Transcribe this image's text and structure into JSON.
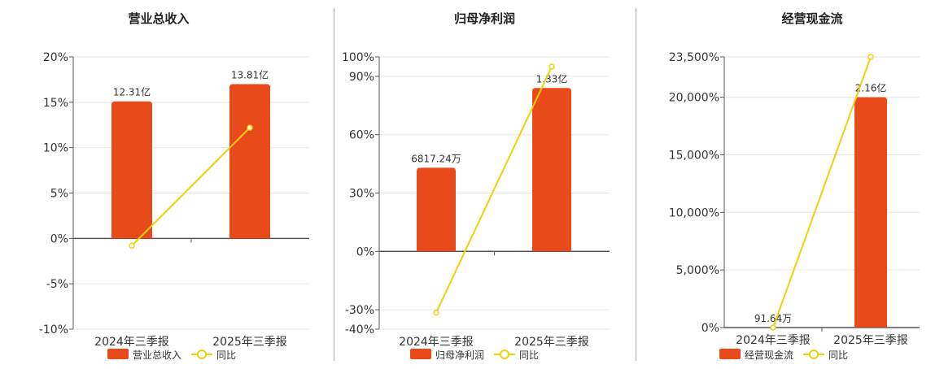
{
  "chart_data": [
    {
      "type": "bar",
      "title": "营业总收入",
      "categories": [
        "2024年三季报",
        "2025年三季报"
      ],
      "series": [
        {
          "name": "营业总收入",
          "type": "bar",
          "value_labels": [
            "12.31亿",
            "13.81亿"
          ],
          "heights_pct": [
            15.1,
            17.0
          ]
        },
        {
          "name": "同比",
          "type": "line",
          "values": [
            -0.8,
            12.2
          ]
        }
      ],
      "yticks": [
        "20%",
        "15%",
        "10%",
        "5%",
        "0%",
        "-5%",
        "-10%"
      ],
      "ylim": [
        -10,
        20
      ]
    },
    {
      "type": "bar",
      "title": "归母净利润",
      "categories": [
        "2024年三季报",
        "2025年三季报"
      ],
      "series": [
        {
          "name": "归母净利润",
          "type": "bar",
          "value_labels": [
            "6817.24万",
            "1.33亿"
          ],
          "heights_pct": [
            43,
            84
          ]
        },
        {
          "name": "同比",
          "type": "line",
          "values": [
            -31.5,
            95
          ]
        }
      ],
      "yticks": [
        "100%",
        "90%",
        "60%",
        "30%",
        "0%",
        "-30%",
        "-40%"
      ],
      "ylim": [
        -40,
        100
      ]
    },
    {
      "type": "bar",
      "title": "经营现金流",
      "categories": [
        "2024年三季报",
        "2025年三季报"
      ],
      "series": [
        {
          "name": "经营现金流",
          "type": "bar",
          "value_labels": [
            "91.64万",
            "2.16亿"
          ],
          "heights_pct": [
            0,
            20000
          ]
        },
        {
          "name": "同比",
          "type": "line",
          "values": [
            0,
            23500
          ]
        }
      ],
      "yticks": [
        "23,500%",
        "20,000%",
        "15,000%",
        "10,000%",
        "5,000%",
        "0%"
      ],
      "ylim": [
        0,
        23500
      ]
    }
  ],
  "colors": {
    "bar": "#e84a1a",
    "line": "#f2cf0c",
    "axis": "#555555",
    "grid": "#e6e6e6",
    "text": "#333333"
  }
}
